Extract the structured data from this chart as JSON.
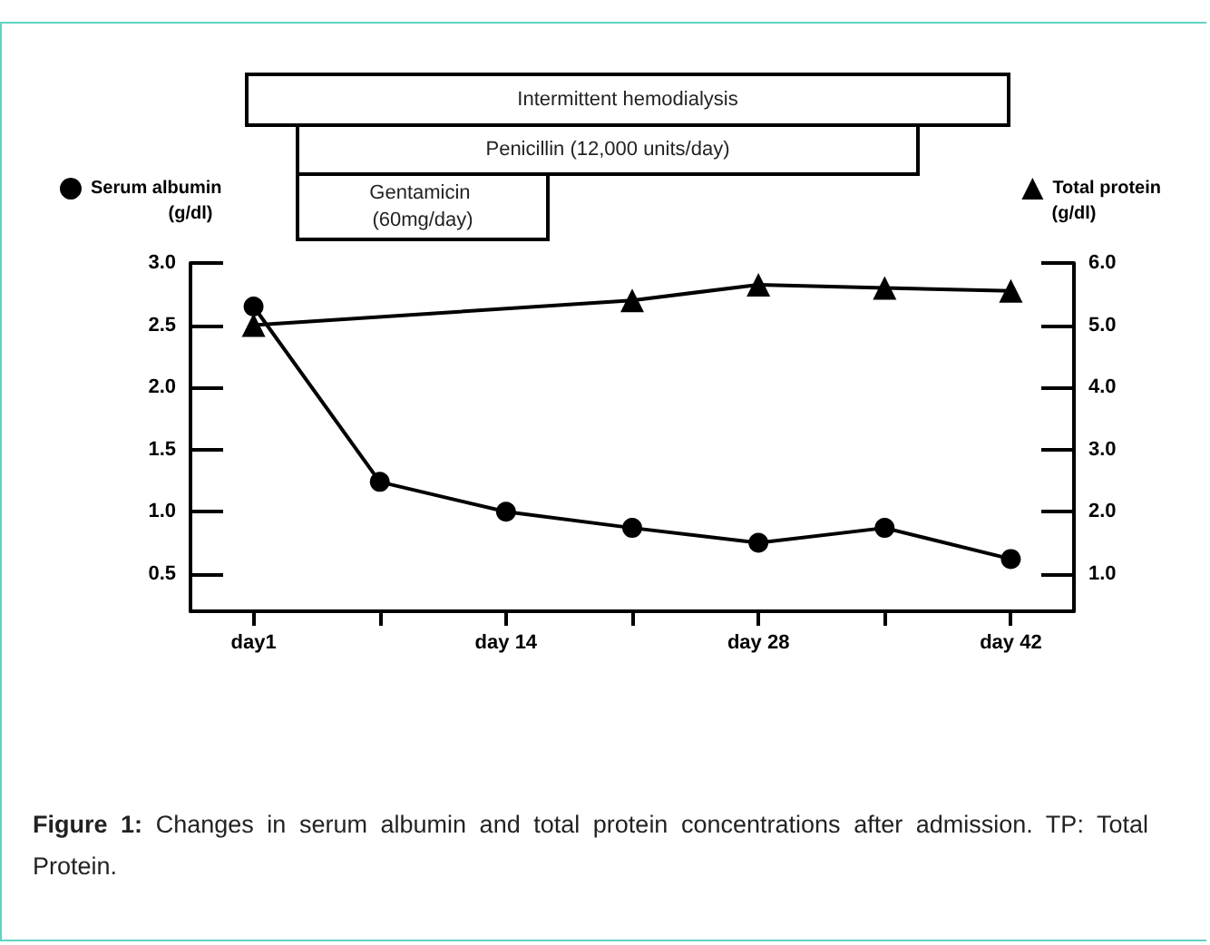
{
  "chart_data": {
    "type": "line",
    "categories": [
      "day1",
      null,
      "day 14",
      null,
      "day 28",
      null,
      "day 42"
    ],
    "series": [
      {
        "name": "Serum albumin",
        "color": "#000000",
        "marker": "circle",
        "values": [
          2.65,
          1.24,
          1.0,
          0.87,
          0.75,
          0.87,
          0.62
        ]
      },
      {
        "name": "Total protein",
        "color": "#000000",
        "marker": "triangle",
        "axis": "y2",
        "values": [
          5.0,
          null,
          null,
          5.4,
          5.65,
          5.6,
          5.55
        ]
      }
    ],
    "ylabel": "(g/dl)",
    "y2label": "(g/dl)",
    "ylim": [
      0.2,
      3.0
    ],
    "yticks": [
      {
        "value": 0.5,
        "label": "0.5"
      },
      {
        "value": 1.0,
        "label": "1.0"
      },
      {
        "value": 1.5,
        "label": "1.5"
      },
      {
        "value": 2.0,
        "label": "2.0"
      },
      {
        "value": 2.5,
        "label": "2.5"
      },
      {
        "value": 3.0,
        "label": "3.0"
      }
    ],
    "y2lim": [
      0.4,
      6.0
    ],
    "y2ticks": [
      {
        "value": 1.0,
        "label": "1.0"
      },
      {
        "value": 2.0,
        "label": "2.0"
      },
      {
        "value": 3.0,
        "label": "3.0"
      },
      {
        "value": 4.0,
        "label": "4.0"
      },
      {
        "value": 5.0,
        "label": "5.0"
      },
      {
        "value": 6.0,
        "label": "6.0"
      }
    ],
    "annotations": [
      "Intermittent hemodialysis",
      "Penicillin (12,000 units/day)",
      "Gentamicin (60mg/day)",
      "Figure 1: Changes in serum albumin and total protein concentrations after admission. TP: Total Protein."
    ],
    "legend": "top",
    "grid": false,
    "line_style": "solid"
  }
}
